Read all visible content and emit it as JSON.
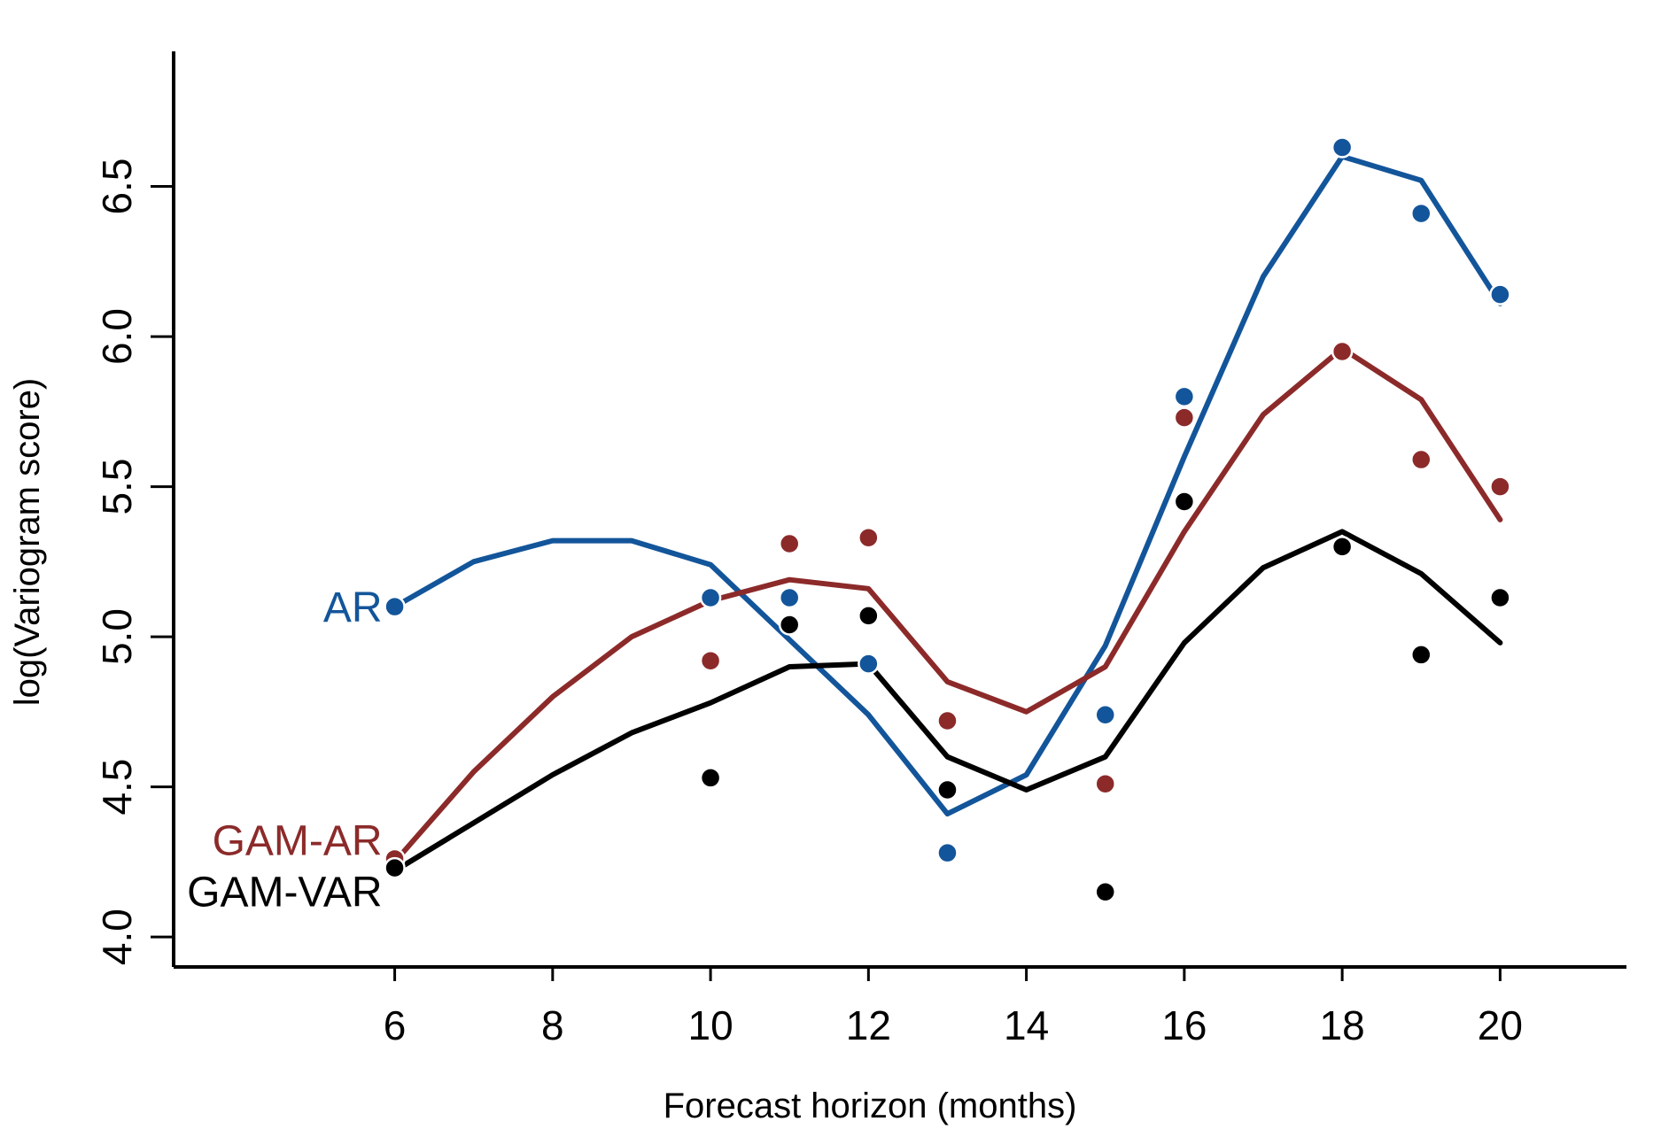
{
  "chart_data": {
    "type": "line",
    "xlabel": "Forecast horizon (months)",
    "ylabel": "log(Variogram score)",
    "xlim": [
      3.2,
      21.6
    ],
    "ylim": [
      3.9,
      6.95
    ],
    "xticks": [
      6,
      8,
      10,
      12,
      14,
      16,
      18,
      20
    ],
    "yticks": [
      4.0,
      4.5,
      5.0,
      5.5,
      6.0,
      6.5
    ],
    "ytick_labels": [
      "4.0",
      "4.5",
      "5.0",
      "5.5",
      "6.0",
      "6.5"
    ],
    "grid": false,
    "legend": "inline labels at left end of each line",
    "series": [
      {
        "name": "AR",
        "color": "#13559a",
        "line": {
          "x": [
            6,
            7,
            8,
            9,
            10,
            11,
            12,
            13,
            14,
            15,
            16,
            17,
            18,
            19,
            20
          ],
          "y": [
            5.1,
            5.25,
            5.32,
            5.32,
            5.24,
            4.99,
            4.74,
            4.41,
            4.54,
            4.97,
            5.6,
            6.2,
            6.6,
            6.52,
            6.11
          ]
        },
        "points": {
          "x": [
            6,
            10,
            11,
            12,
            13,
            15,
            16,
            18,
            19,
            20
          ],
          "y": [
            5.1,
            5.13,
            5.13,
            4.91,
            4.28,
            4.74,
            5.8,
            6.63,
            6.41,
            6.14
          ]
        }
      },
      {
        "name": "GAM-AR",
        "color": "#8c2a2a",
        "line": {
          "x": [
            6,
            7,
            8,
            9,
            10,
            11,
            12,
            13,
            14,
            15,
            16,
            17,
            18,
            19,
            20
          ],
          "y": [
            4.25,
            4.55,
            4.8,
            5.0,
            5.12,
            5.19,
            5.16,
            4.85,
            4.75,
            4.9,
            5.35,
            5.74,
            5.96,
            5.79,
            5.39
          ]
        },
        "points": {
          "x": [
            6,
            10,
            11,
            12,
            13,
            15,
            16,
            18,
            19,
            20
          ],
          "y": [
            4.26,
            4.92,
            5.31,
            5.33,
            4.72,
            4.51,
            5.73,
            5.95,
            5.59,
            5.5
          ]
        }
      },
      {
        "name": "GAM-VAR",
        "color": "#000000",
        "line": {
          "x": [
            6,
            7,
            8,
            9,
            10,
            11,
            12,
            13,
            14,
            15,
            16,
            17,
            18,
            19,
            20
          ],
          "y": [
            4.22,
            4.38,
            4.54,
            4.68,
            4.78,
            4.9,
            4.91,
            4.6,
            4.49,
            4.6,
            4.98,
            5.23,
            5.35,
            5.21,
            4.98
          ]
        },
        "points": {
          "x": [
            6,
            10,
            11,
            12,
            13,
            15,
            16,
            18,
            19,
            20
          ],
          "y": [
            4.23,
            4.53,
            5.04,
            5.07,
            4.49,
            4.15,
            5.45,
            5.3,
            4.94,
            5.13
          ]
        }
      }
    ]
  }
}
